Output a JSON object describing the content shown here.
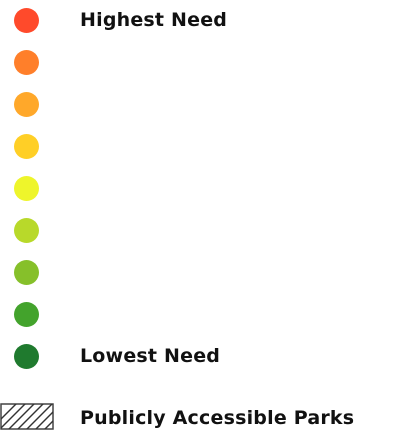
{
  "legend": {
    "steps": [
      {
        "color": "#ff4a2b",
        "label": "Highest Need"
      },
      {
        "color": "#ff7f2a",
        "label": ""
      },
      {
        "color": "#ffa82a",
        "label": ""
      },
      {
        "color": "#ffcf26",
        "label": ""
      },
      {
        "color": "#eef52b",
        "label": ""
      },
      {
        "color": "#b8d92a",
        "label": ""
      },
      {
        "color": "#86c02a",
        "label": ""
      },
      {
        "color": "#43a32c",
        "label": ""
      },
      {
        "color": "#1f7a2e",
        "label": "Lowest Need"
      }
    ],
    "parks_label": "Publicly Accessible Parks",
    "parks_pattern_icon": "diagonal-hatch-icon"
  }
}
